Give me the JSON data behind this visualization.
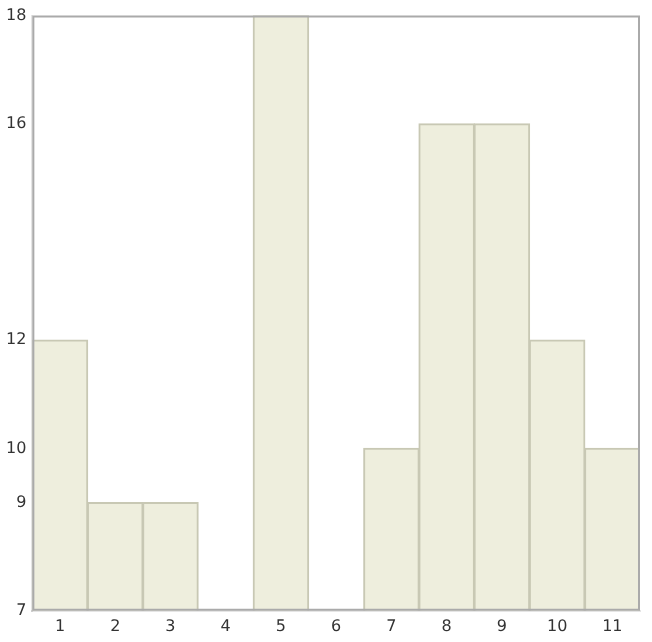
{
  "chart_data": {
    "type": "bar",
    "categories": [
      "1",
      "2",
      "3",
      "4",
      "5",
      "6",
      "7",
      "8",
      "9",
      "10",
      "11"
    ],
    "values": [
      12,
      9,
      9,
      7,
      18,
      7,
      10,
      16,
      16,
      12,
      10
    ],
    "color": "#eeeedd",
    "ylim": [
      7,
      18
    ],
    "yticks": [
      7,
      9,
      10,
      12,
      16,
      18
    ],
    "grid": false,
    "legend": false
  }
}
